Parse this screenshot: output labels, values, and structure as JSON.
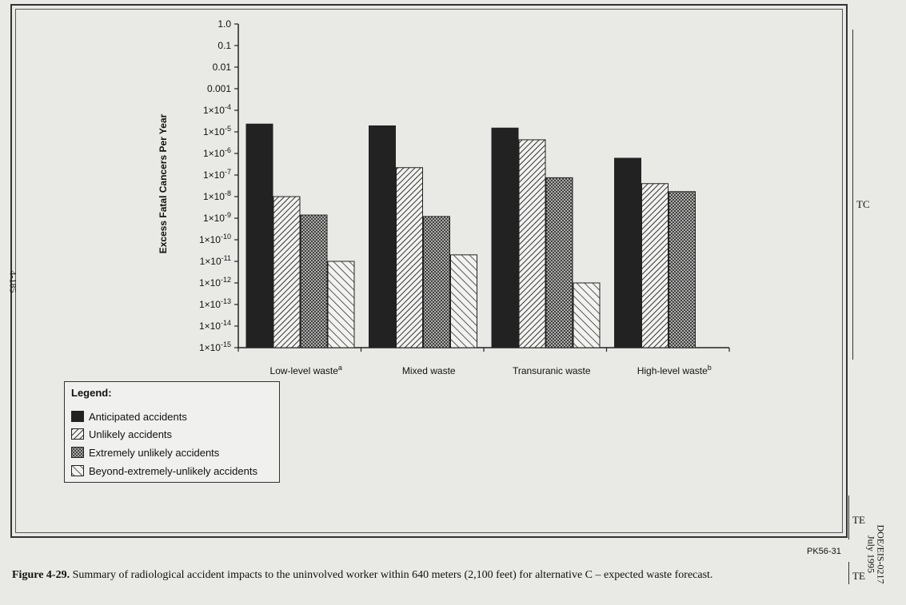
{
  "chart_data": {
    "type": "bar",
    "categories": [
      "Low-level waste",
      "Mixed waste",
      "Transuranic waste",
      "High-level waste"
    ],
    "category_superscripts": [
      "a",
      "",
      "",
      "b"
    ],
    "ylabel": "Excess Fatal Cancers Per Year",
    "yscale": "log",
    "ylim": [
      1e-15,
      1.0
    ],
    "ytick_labels": [
      "1.0",
      "0.1",
      "0.01",
      "0.001",
      "1×10-4",
      "1×10-5",
      "1×10-6",
      "1×10-7",
      "1×10-8",
      "1×10-9",
      "1×10-10",
      "1×10-11",
      "1×10-12",
      "1×10-13",
      "1×10-14",
      "1×10-15"
    ],
    "series": [
      {
        "name": "Anticipated accidents",
        "pattern": "solid-dark",
        "values": [
          2.3e-05,
          1.9e-05,
          1.5e-05,
          6e-07
        ]
      },
      {
        "name": "Unlikely accidents",
        "pattern": "diagonal-dense",
        "values": [
          1e-08,
          2.2e-07,
          4.3e-06,
          4e-08
        ]
      },
      {
        "name": "Extremely unlikely accidents",
        "pattern": "crosshatch",
        "values": [
          1.4e-09,
          1.2e-09,
          7.5e-08,
          1.7e-08
        ]
      },
      {
        "name": "Beyond-extremely-unlikely accidents",
        "pattern": "diagonal-sparse",
        "values": [
          1e-11,
          2e-11,
          1e-12,
          null
        ]
      }
    ],
    "legend_title": "Legend:",
    "legend_position": "bottom-left"
  },
  "figure_code": "PK56-31",
  "caption": {
    "label": "Figure 4-29.",
    "text": "Summary of radiological accident impacts to the uninvolved worker within 640 meters (2,100 feet) for alternative C – expected waste forecast."
  },
  "margin": {
    "tc_label": "TC",
    "te_label": "TE",
    "page_number": "4-185",
    "doc_id": "DOE/EIS-0217",
    "date": "July 1995"
  },
  "colors": {
    "bar_dark": "#222222",
    "hatch": "#333333",
    "background": "#e9e9e6"
  }
}
